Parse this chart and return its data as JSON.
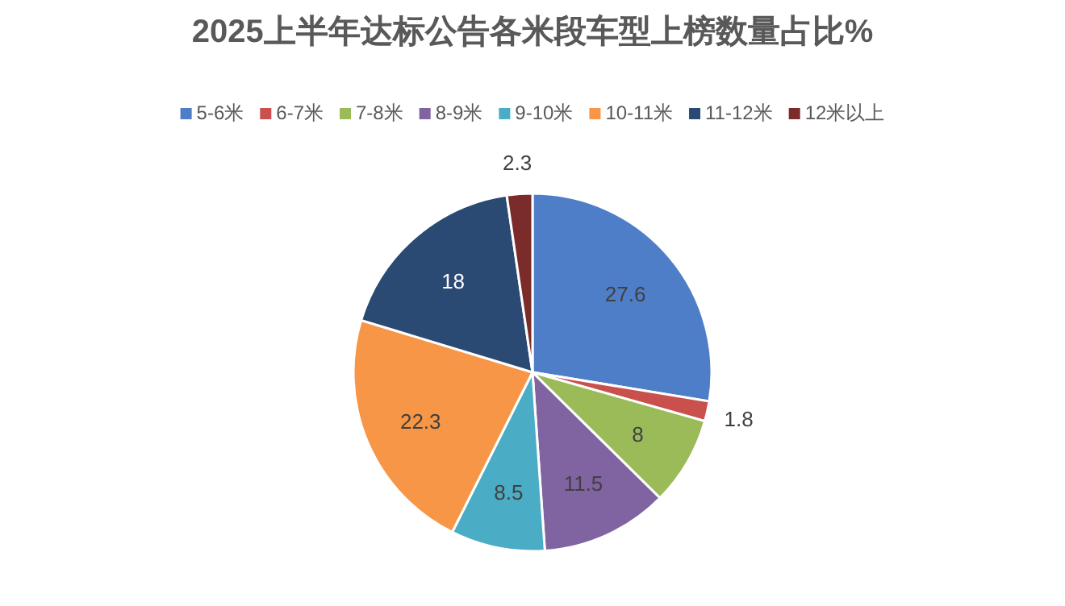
{
  "chart_data": {
    "type": "pie",
    "title": "2025上半年达标公告各米段车型上榜数量占比%",
    "categories": [
      "5-6米",
      "6-7米",
      "7-8米",
      "8-9米",
      "9-10米",
      "10-11米",
      "11-12米",
      "12米以上"
    ],
    "values": [
      27.6,
      1.8,
      8,
      11.5,
      8.5,
      22.3,
      18,
      2.3
    ],
    "colors": [
      "#4f7ec8",
      "#c9504d",
      "#9bbb59",
      "#8064a2",
      "#4bacc6",
      "#f79646",
      "#2b4a73",
      "#7a2b2a"
    ],
    "data_labels": true,
    "legend": "top"
  }
}
